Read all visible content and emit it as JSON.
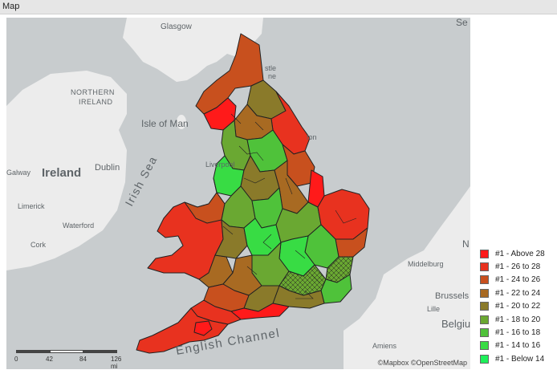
{
  "panel_title": "Map",
  "map": {
    "labels": {
      "glasgow": "Glasgow",
      "northern_ireland_1": "NORTHERN",
      "northern_ireland_2": "IRELAND",
      "isle_of_man": "Isle of Man",
      "irish_sea": "Irish Sea",
      "galway": "Galway",
      "ireland": "Ireland",
      "dublin": "Dublin",
      "limerick": "Limerick",
      "waterford": "Waterford",
      "cork": "Cork",
      "liverpool": "Liverpool",
      "english_channel": "English Channel",
      "middelburg": "Middelburg",
      "brussels": "Brussels",
      "lille": "Lille",
      "belgium": "Belgiu",
      "amiens": "Amiens",
      "newcastle_1": "stle",
      "newcastle_2": "ne",
      "hull_fragment": "ton",
      "north_sea_fragment": "Se",
      "north_fragment": "N"
    },
    "scale": {
      "ticks": [
        "0",
        "42",
        "84",
        "126 mi"
      ]
    },
    "attribution": "©Mapbox ©OpenStreetMap"
  },
  "legend": {
    "items": [
      {
        "label": "#1 - Above 28",
        "color": "#ff1a1a"
      },
      {
        "label": "#1 - 26 to 28",
        "color": "#e8321f"
      },
      {
        "label": "#1 - 24 to 26",
        "color": "#c8501e"
      },
      {
        "label": "#1 - 22 to 24",
        "color": "#a86a22"
      },
      {
        "label": "#1 - 20 to 22",
        "color": "#8a7a2a"
      },
      {
        "label": "#1 - 18 to 20",
        "color": "#6aa832"
      },
      {
        "label": "#1 - 16 to 18",
        "color": "#4fc23a"
      },
      {
        "label": "#1 - 14 to 16",
        "color": "#38dc44"
      },
      {
        "label": "#1 - Below 14",
        "color": "#1df05a"
      }
    ]
  }
}
